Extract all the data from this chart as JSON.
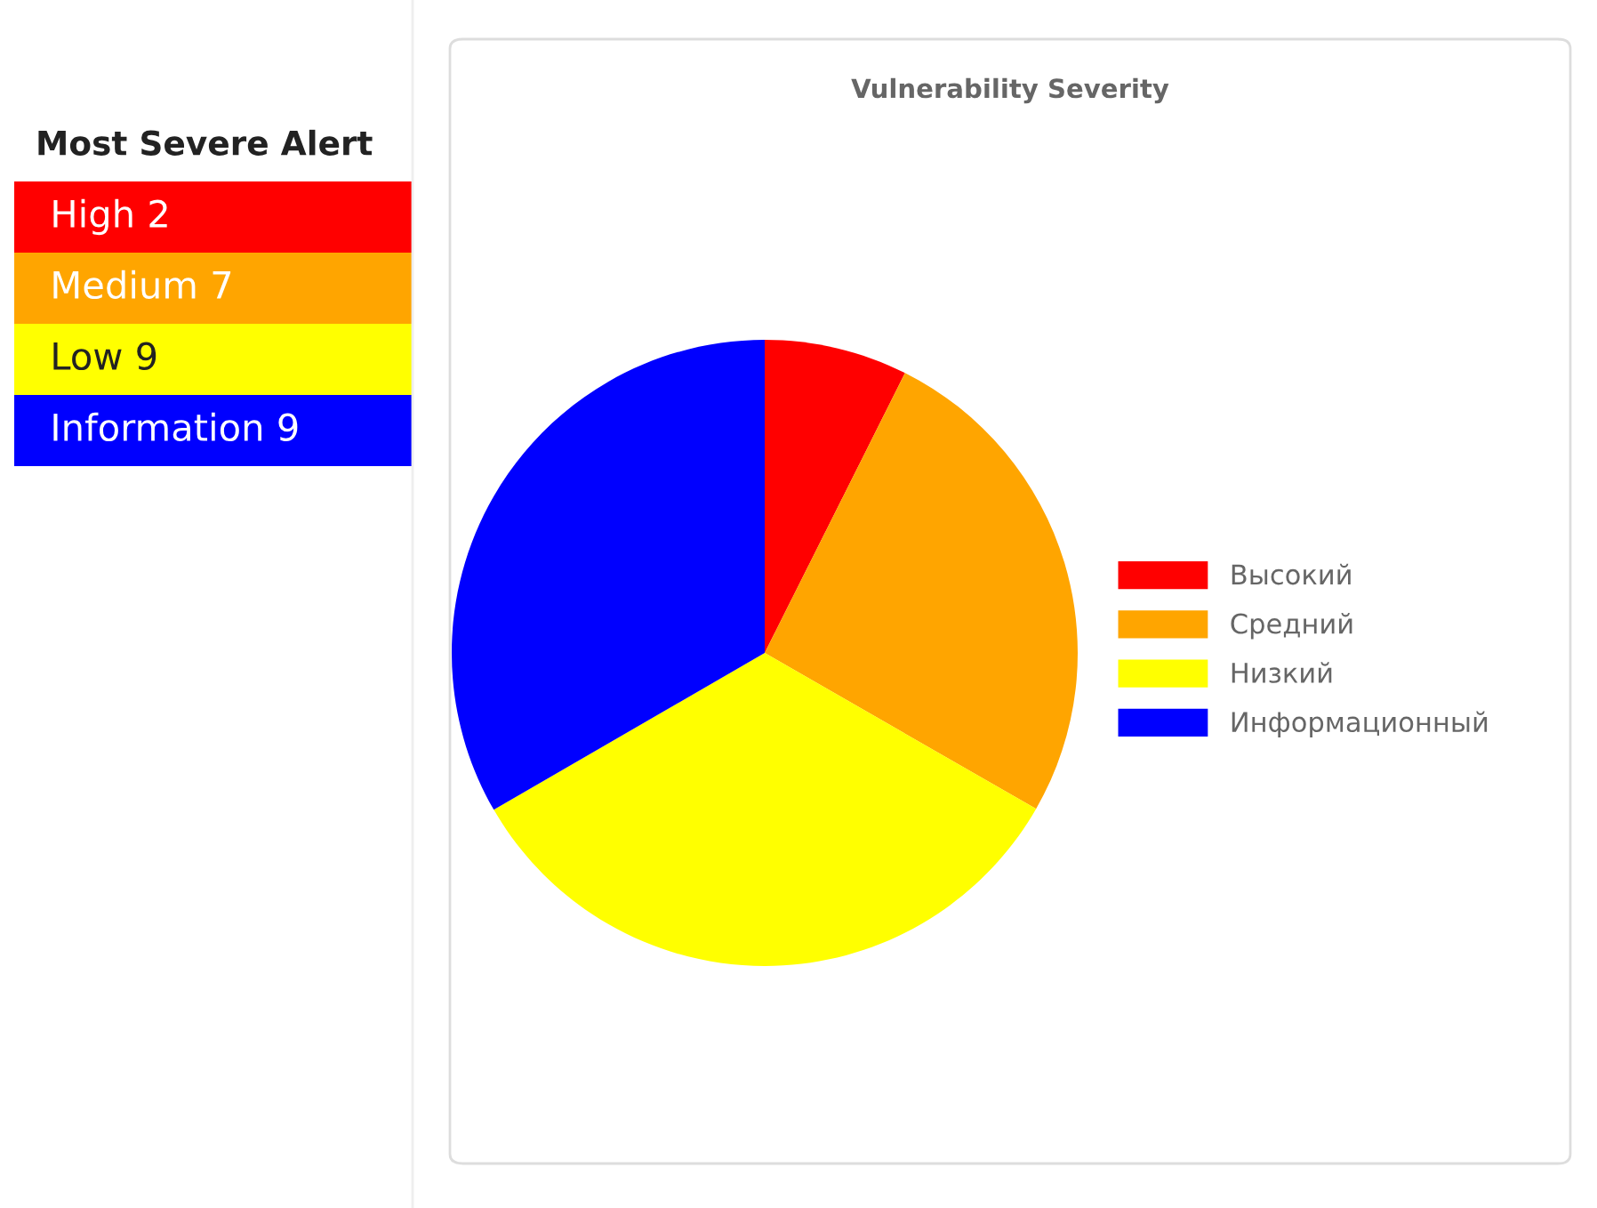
{
  "chart_data": [
    {
      "type": "other",
      "title": "Most Severe Alert",
      "annotations": [
        "High 2",
        "Medium 7",
        "Low 9",
        "Information 9"
      ],
      "colors": [
        "#ff0000",
        "#ffa500",
        "#ffff00",
        "#0000ff"
      ]
    },
    {
      "type": "pie",
      "title": "Vulnerability Severity",
      "categories": [
        "Высокий",
        "Средний",
        "Низкий",
        "Информационный"
      ],
      "values": [
        7.4,
        25.9,
        33.35,
        33.35
      ],
      "colors": [
        "#ff0000",
        "#ffa500",
        "#ffff00",
        "#0000ff"
      ],
      "legend": "right"
    }
  ]
}
